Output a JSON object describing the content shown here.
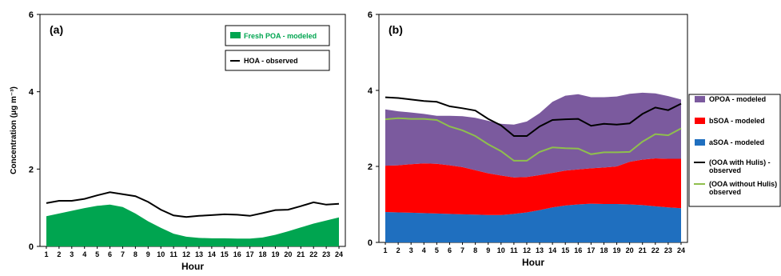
{
  "chart_data": [
    {
      "type": "area",
      "panel_label": "(a)",
      "xlabel": "Hour",
      "ylabel": "Concentration (μg m⁻³)",
      "ylim": [
        0,
        6
      ],
      "yticks": [
        0,
        2,
        4,
        6
      ],
      "x": [
        1,
        2,
        3,
        4,
        5,
        6,
        7,
        8,
        9,
        10,
        11,
        12,
        13,
        14,
        15,
        16,
        17,
        18,
        19,
        20,
        21,
        22,
        23,
        24
      ],
      "series": [
        {
          "name": "Fresh POA - modeled",
          "kind": "area",
          "color": "#00a550",
          "values": [
            0.78,
            0.85,
            0.92,
            0.99,
            1.05,
            1.08,
            1.02,
            0.85,
            0.65,
            0.48,
            0.33,
            0.25,
            0.22,
            0.21,
            0.21,
            0.2,
            0.2,
            0.23,
            0.3,
            0.39,
            0.49,
            0.59,
            0.67,
            0.75
          ]
        },
        {
          "name": "HOA - observed",
          "kind": "line",
          "color": "#000000",
          "values": [
            1.12,
            1.18,
            1.18,
            1.23,
            1.32,
            1.4,
            1.35,
            1.3,
            1.15,
            0.95,
            0.8,
            0.76,
            0.79,
            0.81,
            0.83,
            0.82,
            0.79,
            0.86,
            0.94,
            0.95,
            1.04,
            1.14,
            1.08,
            1.1
          ]
        }
      ],
      "legend": {
        "position": "top-right"
      }
    },
    {
      "type": "area",
      "stacked": true,
      "panel_label": "(b)",
      "xlabel": "Hour",
      "ylim": [
        0,
        6
      ],
      "yticks": [
        0,
        2,
        4,
        6
      ],
      "x": [
        1,
        2,
        3,
        4,
        5,
        6,
        7,
        8,
        9,
        10,
        11,
        12,
        13,
        14,
        15,
        16,
        17,
        18,
        19,
        20,
        21,
        22,
        23,
        24
      ],
      "series": [
        {
          "name": "aSOA - modeled",
          "kind": "area",
          "color": "#1f6fbf",
          "values": [
            0.8,
            0.79,
            0.78,
            0.77,
            0.76,
            0.75,
            0.74,
            0.73,
            0.72,
            0.72,
            0.75,
            0.79,
            0.85,
            0.92,
            0.97,
            1.0,
            1.02,
            1.01,
            1.01,
            1.0,
            0.98,
            0.95,
            0.92,
            0.9
          ]
        },
        {
          "name": "bSOA - modeled",
          "kind": "area",
          "color": "#ff0000",
          "values": [
            1.22,
            1.24,
            1.28,
            1.31,
            1.31,
            1.28,
            1.24,
            1.17,
            1.1,
            1.04,
            0.96,
            0.93,
            0.92,
            0.91,
            0.92,
            0.92,
            0.93,
            0.96,
            0.99,
            1.12,
            1.2,
            1.26,
            1.28,
            1.3
          ]
        },
        {
          "name": "OPOA - modeled",
          "kind": "area",
          "color": "#7b5a9e",
          "values": [
            1.48,
            1.42,
            1.36,
            1.3,
            1.26,
            1.3,
            1.34,
            1.38,
            1.38,
            1.36,
            1.39,
            1.46,
            1.63,
            1.87,
            1.97,
            1.98,
            1.87,
            1.85,
            1.84,
            1.79,
            1.76,
            1.71,
            1.65,
            1.56
          ]
        },
        {
          "name": "(OOA with Hulis) - observed",
          "kind": "line",
          "color": "#000000",
          "values": [
            3.82,
            3.8,
            3.76,
            3.72,
            3.7,
            3.58,
            3.53,
            3.47,
            3.25,
            3.08,
            2.8,
            2.8,
            3.05,
            3.22,
            3.24,
            3.25,
            3.07,
            3.12,
            3.1,
            3.13,
            3.38,
            3.55,
            3.48,
            3.65
          ]
        },
        {
          "name": "(OOA without Hulis) observed",
          "kind": "line",
          "color": "#8fbf4d",
          "values": [
            3.24,
            3.27,
            3.25,
            3.25,
            3.22,
            3.05,
            2.95,
            2.8,
            2.58,
            2.4,
            2.15,
            2.15,
            2.38,
            2.5,
            2.48,
            2.47,
            2.32,
            2.37,
            2.37,
            2.38,
            2.65,
            2.85,
            2.82,
            3.0
          ]
        }
      ],
      "legend": {
        "position": "right"
      }
    }
  ]
}
